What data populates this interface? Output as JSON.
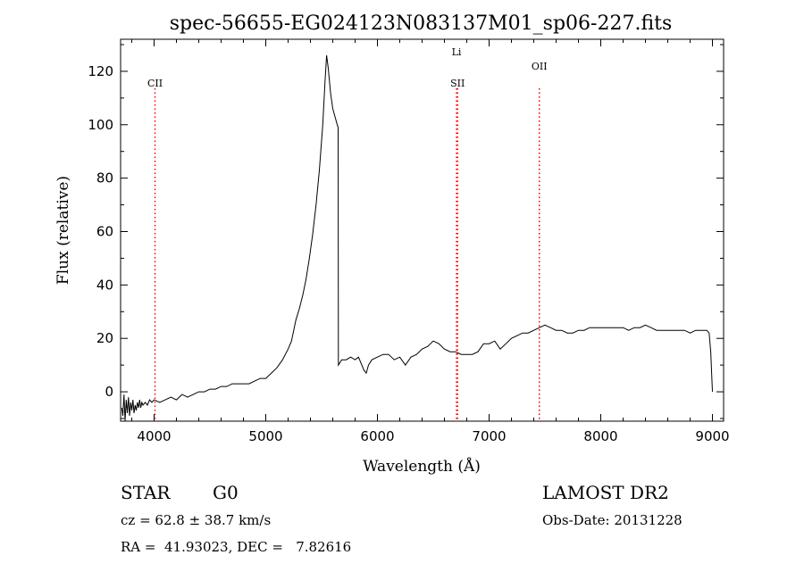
{
  "chart_data": {
    "type": "line",
    "title": "spec-56655-EG024123N083137M01_sp06-227.fits",
    "xlabel": "Wavelength (Å)",
    "ylabel": "Flux (relative)",
    "xlim": [
      3700,
      9100
    ],
    "ylim": [
      -11,
      132
    ],
    "xticks": [
      4000,
      5000,
      6000,
      7000,
      8000,
      9000
    ],
    "yticks": [
      0,
      20,
      40,
      60,
      80,
      100,
      120
    ],
    "grid": false,
    "series": [
      {
        "color": "#000000",
        "points": [
          [
            3710,
            -6
          ],
          [
            3720,
            -9
          ],
          [
            3730,
            -1
          ],
          [
            3740,
            -11
          ],
          [
            3750,
            -3
          ],
          [
            3760,
            -8
          ],
          [
            3770,
            -2
          ],
          [
            3780,
            -9
          ],
          [
            3790,
            -4
          ],
          [
            3800,
            -7
          ],
          [
            3810,
            -3
          ],
          [
            3820,
            -8
          ],
          [
            3830,
            -5
          ],
          [
            3840,
            -7
          ],
          [
            3850,
            -4
          ],
          [
            3860,
            -6
          ],
          [
            3870,
            -3
          ],
          [
            3880,
            -6
          ],
          [
            3890,
            -4
          ],
          [
            3900,
            -5
          ],
          [
            3920,
            -4
          ],
          [
            3940,
            -5
          ],
          [
            3960,
            -3
          ],
          [
            3980,
            -4
          ],
          [
            4000,
            -3
          ],
          [
            4050,
            -4
          ],
          [
            4100,
            -3
          ],
          [
            4150,
            -2
          ],
          [
            4200,
            -3
          ],
          [
            4250,
            -1
          ],
          [
            4300,
            -2
          ],
          [
            4350,
            -1
          ],
          [
            4400,
            0
          ],
          [
            4450,
            0
          ],
          [
            4500,
            1
          ],
          [
            4550,
            1
          ],
          [
            4600,
            2
          ],
          [
            4650,
            2
          ],
          [
            4700,
            3
          ],
          [
            4750,
            3
          ],
          [
            4800,
            3
          ],
          [
            4850,
            3
          ],
          [
            4900,
            4
          ],
          [
            4950,
            5
          ],
          [
            5000,
            5
          ],
          [
            5050,
            7
          ],
          [
            5100,
            9
          ],
          [
            5150,
            12
          ],
          [
            5200,
            16
          ],
          [
            5230,
            19
          ],
          [
            5250,
            23
          ],
          [
            5270,
            27
          ],
          [
            5300,
            31
          ],
          [
            5330,
            36
          ],
          [
            5360,
            42
          ],
          [
            5390,
            50
          ],
          [
            5420,
            59
          ],
          [
            5450,
            70
          ],
          [
            5480,
            83
          ],
          [
            5510,
            100
          ],
          [
            5530,
            116
          ],
          [
            5545,
            126
          ],
          [
            5560,
            121
          ],
          [
            5580,
            112
          ],
          [
            5600,
            106
          ],
          [
            5620,
            103
          ],
          [
            5640,
            100
          ],
          [
            5648,
            99
          ],
          [
            5650,
            10
          ],
          [
            5680,
            12
          ],
          [
            5720,
            12
          ],
          [
            5760,
            13
          ],
          [
            5800,
            12
          ],
          [
            5830,
            13
          ],
          [
            5860,
            10
          ],
          [
            5880,
            8
          ],
          [
            5900,
            7
          ],
          [
            5920,
            10
          ],
          [
            5950,
            12
          ],
          [
            6000,
            13
          ],
          [
            6050,
            14
          ],
          [
            6100,
            14
          ],
          [
            6150,
            12
          ],
          [
            6200,
            13
          ],
          [
            6250,
            10
          ],
          [
            6300,
            13
          ],
          [
            6350,
            14
          ],
          [
            6400,
            16
          ],
          [
            6450,
            17
          ],
          [
            6500,
            19
          ],
          [
            6550,
            18
          ],
          [
            6600,
            16
          ],
          [
            6650,
            15
          ],
          [
            6700,
            15
          ],
          [
            6750,
            14
          ],
          [
            6800,
            14
          ],
          [
            6850,
            14
          ],
          [
            6900,
            15
          ],
          [
            6950,
            18
          ],
          [
            7000,
            18
          ],
          [
            7050,
            19
          ],
          [
            7100,
            16
          ],
          [
            7150,
            18
          ],
          [
            7200,
            20
          ],
          [
            7250,
            21
          ],
          [
            7300,
            22
          ],
          [
            7350,
            22
          ],
          [
            7400,
            23
          ],
          [
            7450,
            24
          ],
          [
            7500,
            25
          ],
          [
            7550,
            24
          ],
          [
            7600,
            23
          ],
          [
            7650,
            23
          ],
          [
            7700,
            22
          ],
          [
            7750,
            22
          ],
          [
            7800,
            23
          ],
          [
            7850,
            23
          ],
          [
            7900,
            24
          ],
          [
            7950,
            24
          ],
          [
            8000,
            24
          ],
          [
            8050,
            24
          ],
          [
            8100,
            24
          ],
          [
            8150,
            24
          ],
          [
            8200,
            24
          ],
          [
            8250,
            23
          ],
          [
            8300,
            24
          ],
          [
            8350,
            24
          ],
          [
            8400,
            25
          ],
          [
            8450,
            24
          ],
          [
            8500,
            23
          ],
          [
            8550,
            23
          ],
          [
            8600,
            23
          ],
          [
            8650,
            23
          ],
          [
            8700,
            23
          ],
          [
            8750,
            23
          ],
          [
            8800,
            22
          ],
          [
            8850,
            23
          ],
          [
            8900,
            23
          ],
          [
            8950,
            23
          ],
          [
            8970,
            22
          ],
          [
            8985,
            15
          ],
          [
            9000,
            0
          ]
        ]
      }
    ],
    "lines": [
      {
        "label": "CII",
        "x": 4008,
        "color": "#ff0000"
      },
      {
        "label": "Li",
        "x": 6708,
        "color": "#ff0000"
      },
      {
        "label": "SII",
        "x": 6718,
        "color": "#ff0000"
      },
      {
        "label": "OII",
        "x": 7450,
        "color": "#ff0000"
      }
    ]
  },
  "info": {
    "class_label": "STAR",
    "subclass": "G0",
    "survey": "LAMOST DR2",
    "cz": "cz = 62.8 ± 38.7 km/s",
    "obs_date": "Obs-Date: 20131228",
    "coords": "RA =  41.93023, DEC =   7.82616"
  }
}
